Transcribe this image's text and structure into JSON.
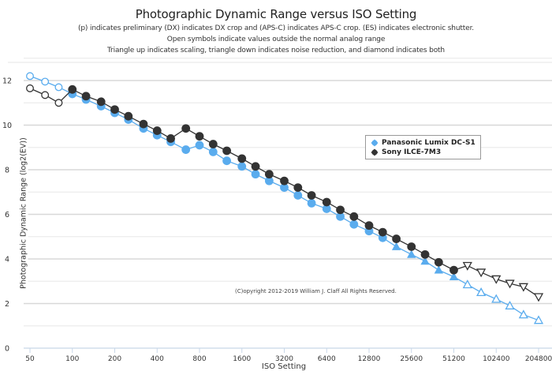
{
  "chart_data": {
    "type": "line",
    "title": "Photographic Dynamic Range versus ISO Setting",
    "subtitles": [
      "(p) indicates preliminary (DX) indicates DX crop and (APS-C) indicates APS-C crop. (ES) indicates electronic shutter.",
      "Open symbols indicate values outside the normal analog range",
      "Triangle up indicates scaling, triangle down indicates noise reduction, and diamond indicates both"
    ],
    "xlabel": "ISO Setting",
    "ylabel": "Photographic Dynamic Range (log2(EV))",
    "x_scale": "log2",
    "x_ticks": [
      "50",
      "100",
      "200",
      "400",
      "800",
      "1600",
      "3200",
      "6400",
      "12800",
      "25600",
      "51200",
      "102400",
      "204800"
    ],
    "y_ticks": [
      "0",
      "2",
      "4",
      "6",
      "8",
      "10",
      "12"
    ],
    "ylim": [
      0,
      13
    ],
    "grid": true,
    "legend_position": "center-right",
    "copyright": "(C)opyright 2012-2019 William J. Claff All Rights Reserved.",
    "series": [
      {
        "name": "Panasonic Lumix DC-S1",
        "color": "#5aacee",
        "x": [
          50,
          64,
          80,
          100,
          125,
          160,
          200,
          250,
          320,
          400,
          500,
          640,
          800,
          1000,
          1250,
          1600,
          2000,
          2500,
          3200,
          4000,
          5000,
          6400,
          8000,
          10000,
          12800,
          16000,
          20000,
          25600,
          32000,
          40000,
          51200,
          64000,
          80000,
          102400,
          128000,
          160000,
          204800
        ],
        "values": [
          12.2,
          11.95,
          11.7,
          11.4,
          11.15,
          10.85,
          10.55,
          10.25,
          9.85,
          9.55,
          9.25,
          8.9,
          9.1,
          8.8,
          8.4,
          8.15,
          7.8,
          7.5,
          7.2,
          6.85,
          6.5,
          6.25,
          5.9,
          5.55,
          5.25,
          4.95,
          4.55,
          4.2,
          3.9,
          3.5,
          3.2,
          2.85,
          2.5,
          2.2,
          1.9,
          1.5,
          1.25
        ],
        "markers": [
          "open-circle",
          "open-circle",
          "open-circle",
          "circle",
          "circle",
          "circle",
          "circle",
          "circle",
          "circle",
          "circle",
          "circle",
          "circle",
          "circle",
          "circle",
          "circle",
          "circle",
          "circle",
          "circle",
          "circle",
          "circle",
          "circle",
          "circle",
          "circle",
          "circle",
          "circle",
          "circle",
          "triangle-up",
          "triangle-up",
          "triangle-up",
          "triangle-up",
          "triangle-up",
          "open-triangle-up",
          "open-triangle-up",
          "open-triangle-up",
          "open-triangle-up",
          "open-triangle-up",
          "open-triangle-up"
        ]
      },
      {
        "name": "Sony ILCE-7M3",
        "color": "#333333",
        "x": [
          50,
          64,
          80,
          100,
          125,
          160,
          200,
          250,
          320,
          400,
          500,
          640,
          800,
          1000,
          1250,
          1600,
          2000,
          2500,
          3200,
          4000,
          5000,
          6400,
          8000,
          10000,
          12800,
          16000,
          20000,
          25600,
          32000,
          40000,
          51200,
          64000,
          80000,
          102400,
          128000,
          160000,
          204800
        ],
        "values": [
          11.65,
          11.35,
          11.0,
          11.6,
          11.3,
          11.05,
          10.7,
          10.4,
          10.05,
          9.75,
          9.4,
          9.85,
          9.5,
          9.15,
          8.85,
          8.5,
          8.15,
          7.8,
          7.5,
          7.2,
          6.85,
          6.55,
          6.2,
          5.9,
          5.5,
          5.2,
          4.9,
          4.55,
          4.2,
          3.85,
          3.5,
          3.7,
          3.4,
          3.1,
          2.9,
          2.75,
          2.3
        ],
        "markers": [
          "open-circle",
          "open-circle",
          "open-circle",
          "circle",
          "circle",
          "circle",
          "circle",
          "circle",
          "circle",
          "circle",
          "circle",
          "circle",
          "circle",
          "circle",
          "circle",
          "circle",
          "circle",
          "circle",
          "circle",
          "circle",
          "circle",
          "circle",
          "circle",
          "circle",
          "circle",
          "circle",
          "circle",
          "circle",
          "circle",
          "circle",
          "circle",
          "open-triangle-down",
          "open-triangle-down",
          "open-triangle-down",
          "open-triangle-down",
          "open-triangle-down",
          "open-triangle-down"
        ]
      }
    ]
  }
}
